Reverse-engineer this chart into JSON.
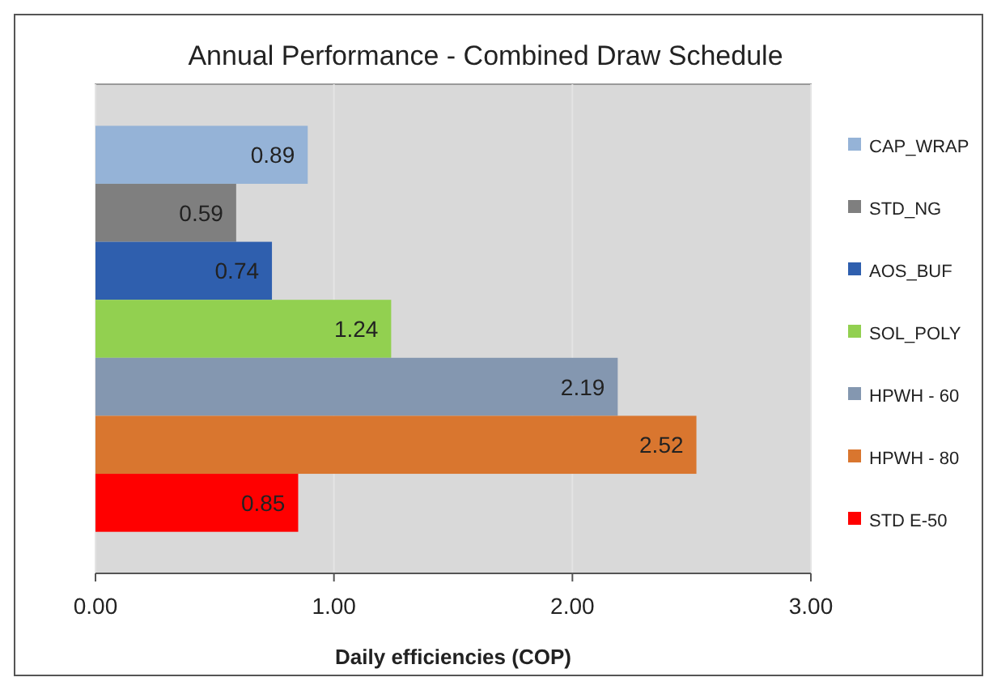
{
  "chart_data": {
    "type": "bar",
    "orientation": "horizontal",
    "title": "Annual Performance - Combined Draw Schedule",
    "xlabel": "Daily efficiencies (COP)",
    "categories": [
      null
    ],
    "series": [
      {
        "name": "CAP_WRAP",
        "color": "#95b3d7",
        "values": [
          0.89
        ]
      },
      {
        "name": "STD_NG",
        "color": "#7f7f7f",
        "values": [
          0.59
        ]
      },
      {
        "name": "AOS_BUF",
        "color": "#2f5fae",
        "values": [
          0.74
        ]
      },
      {
        "name": "SOL_POLY",
        "color": "#92d050",
        "values": [
          1.24
        ]
      },
      {
        "name": "HPWH - 60",
        "color": "#8497b0",
        "values": [
          2.19
        ]
      },
      {
        "name": "HPWH - 80",
        "color": "#d9762f",
        "values": [
          2.52
        ]
      },
      {
        "name": "STD E-50",
        "color": "#ff0000",
        "values": [
          0.85
        ]
      }
    ],
    "xlim": [
      0,
      3
    ],
    "xticks": [
      {
        "value": 0,
        "label": "0.00"
      },
      {
        "value": 1,
        "label": "1.00"
      },
      {
        "value": 2,
        "label": "2.00"
      },
      {
        "value": 3,
        "label": "3.00"
      }
    ],
    "grid": "x",
    "legend": "right",
    "data_labels": true
  }
}
